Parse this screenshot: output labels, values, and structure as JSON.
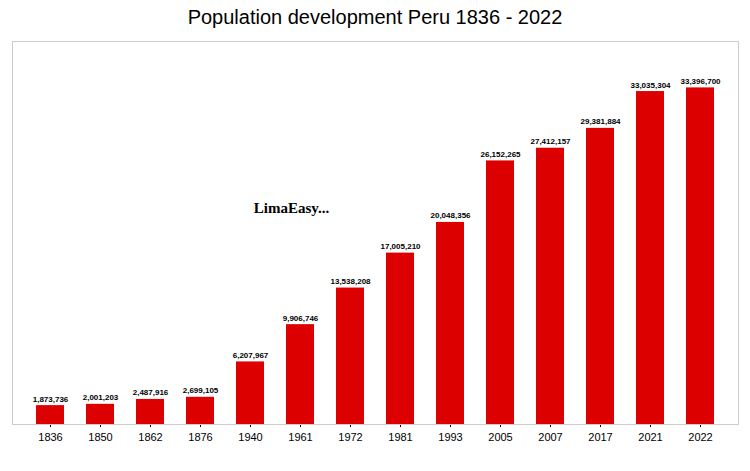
{
  "chart_data": {
    "type": "bar",
    "title": "Population development Peru 1836 - 2022",
    "categories": [
      "1836",
      "1850",
      "1862",
      "1876",
      "1940",
      "1961",
      "1972",
      "1981",
      "1993",
      "2005",
      "2007",
      "2017",
      "2021",
      "2022"
    ],
    "values": [
      1873736,
      2001203,
      2487916,
      2699105,
      6207967,
      9906746,
      13538208,
      17005210,
      20048356,
      26152265,
      27412157,
      29381884,
      33035304,
      33396700
    ],
    "value_labels": [
      "1,873,736",
      "2,001,203",
      "2,487,916",
      "2,699,105",
      "6,207,967",
      "9,906,746",
      "13,538,208",
      "17,005,210",
      "20,048,356",
      "26,152,265",
      "27,412,157",
      "29,381,884",
      "33,035,304",
      "33,396,700"
    ],
    "color": "#dd0000",
    "ylim": [
      0,
      38000000
    ],
    "grid": false,
    "data_labels": true,
    "tick_labels": "x",
    "annotations": [
      "LimaEasy..."
    ]
  }
}
